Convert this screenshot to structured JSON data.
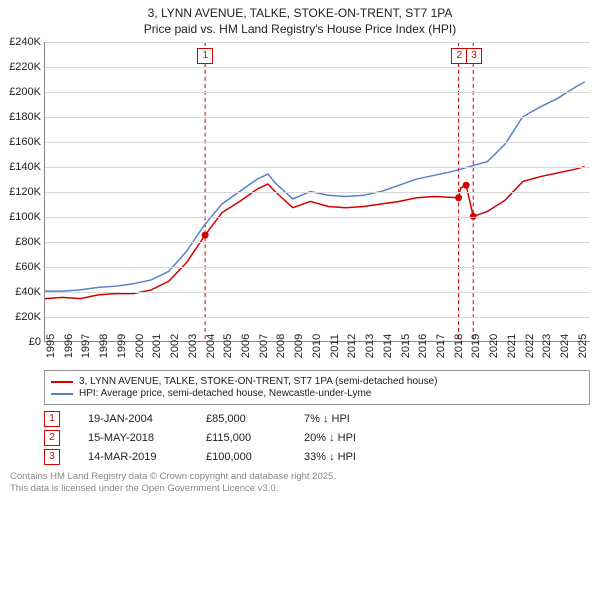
{
  "title": "3, LYNN AVENUE, TALKE, STOKE-ON-TRENT, ST7 1PA",
  "subtitle": "Price paid vs. HM Land Registry's House Price Index (HPI)",
  "chart": {
    "type": "line",
    "background_color": "#ffffff",
    "grid_color": "#d8d8d8",
    "axis_color": "#888888",
    "x_start": 1995,
    "x_end": 2025.8,
    "x_ticks": [
      1995,
      1996,
      1997,
      1998,
      1999,
      2000,
      2001,
      2002,
      2003,
      2004,
      2005,
      2006,
      2007,
      2008,
      2009,
      2010,
      2011,
      2012,
      2013,
      2014,
      2015,
      2016,
      2017,
      2018,
      2019,
      2020,
      2021,
      2022,
      2023,
      2024,
      2025
    ],
    "y_min": 0,
    "y_max": 240000,
    "y_tick_step": 20000,
    "y_tick_labels": [
      "£0",
      "£20K",
      "£40K",
      "£60K",
      "£80K",
      "£100K",
      "£120K",
      "£140K",
      "£160K",
      "£180K",
      "£200K",
      "£220K",
      "£240K"
    ],
    "series": [
      {
        "name": "property",
        "label": "3, LYNN AVENUE, TALKE, STOKE-ON-TRENT, ST7 1PA (semi-detached house)",
        "color": "#d40000",
        "line_width": 1.8,
        "points": [
          [
            1995,
            34000
          ],
          [
            1996,
            35000
          ],
          [
            1997,
            34000
          ],
          [
            1998,
            37000
          ],
          [
            1999,
            38000
          ],
          [
            2000,
            38000
          ],
          [
            2001,
            41000
          ],
          [
            2002,
            48000
          ],
          [
            2003,
            63000
          ],
          [
            2004.05,
            85000
          ],
          [
            2005,
            103000
          ],
          [
            2006,
            112000
          ],
          [
            2007,
            122000
          ],
          [
            2007.6,
            126000
          ],
          [
            2008,
            120000
          ],
          [
            2009,
            107000
          ],
          [
            2010,
            112000
          ],
          [
            2011,
            108000
          ],
          [
            2012,
            107000
          ],
          [
            2013,
            108000
          ],
          [
            2014,
            110000
          ],
          [
            2015,
            112000
          ],
          [
            2016,
            115000
          ],
          [
            2017,
            116000
          ],
          [
            2018.37,
            115000
          ],
          [
            2018.5,
            123000
          ],
          [
            2018.8,
            125000
          ],
          [
            2019.2,
            100000
          ],
          [
            2020,
            104000
          ],
          [
            2021,
            113000
          ],
          [
            2022,
            128000
          ],
          [
            2023,
            132000
          ],
          [
            2024,
            135000
          ],
          [
            2025,
            138000
          ],
          [
            2025.5,
            140000
          ]
        ]
      },
      {
        "name": "hpi",
        "label": "HPI: Average price, semi-detached house, Newcastle-under-Lyme",
        "color": "#5b7fc7",
        "line_width": 1.5,
        "points": [
          [
            1995,
            40000
          ],
          [
            1996,
            40000
          ],
          [
            1997,
            41000
          ],
          [
            1998,
            43000
          ],
          [
            1999,
            44000
          ],
          [
            2000,
            46000
          ],
          [
            2001,
            49000
          ],
          [
            2002,
            56000
          ],
          [
            2003,
            72000
          ],
          [
            2004,
            93000
          ],
          [
            2005,
            110000
          ],
          [
            2006,
            120000
          ],
          [
            2007,
            130000
          ],
          [
            2007.6,
            134000
          ],
          [
            2008,
            127000
          ],
          [
            2009,
            114000
          ],
          [
            2010,
            120000
          ],
          [
            2011,
            117000
          ],
          [
            2012,
            116000
          ],
          [
            2013,
            117000
          ],
          [
            2014,
            120000
          ],
          [
            2015,
            125000
          ],
          [
            2016,
            130000
          ],
          [
            2017,
            133000
          ],
          [
            2018,
            136000
          ],
          [
            2019,
            140000
          ],
          [
            2020,
            144000
          ],
          [
            2021,
            158000
          ],
          [
            2022,
            180000
          ],
          [
            2023,
            188000
          ],
          [
            2024,
            195000
          ],
          [
            2025,
            204000
          ],
          [
            2025.5,
            208000
          ]
        ]
      }
    ],
    "markers": [
      {
        "x": 2004.05,
        "y": 85000,
        "color": "#d40000"
      },
      {
        "x": 2018.37,
        "y": 115000,
        "color": "#d40000"
      },
      {
        "x": 2018.8,
        "y": 125000,
        "color": "#d40000"
      },
      {
        "x": 2019.2,
        "y": 100000,
        "color": "#d40000"
      }
    ],
    "events": [
      {
        "n": "1",
        "x": 2004.05,
        "color": "#d40000"
      },
      {
        "n": "2",
        "x": 2018.37,
        "color": "#d40000"
      },
      {
        "n": "3",
        "x": 2019.2,
        "color": "#d40000"
      }
    ]
  },
  "legend": {
    "border_color": "#999999",
    "items": [
      {
        "color": "#d40000",
        "label": "3, LYNN AVENUE, TALKE, STOKE-ON-TRENT, ST7 1PA (semi-detached house)"
      },
      {
        "color": "#5b7fc7",
        "label": "HPI: Average price, semi-detached house, Newcastle-under-Lyme"
      }
    ]
  },
  "events_table": [
    {
      "n": "1",
      "color": "#d40000",
      "date": "19-JAN-2004",
      "price": "£85,000",
      "pct": "7% ↓ HPI"
    },
    {
      "n": "2",
      "color": "#d40000",
      "date": "15-MAY-2018",
      "price": "£115,000",
      "pct": "20% ↓ HPI"
    },
    {
      "n": "3",
      "color": "#d40000",
      "date": "14-MAR-2019",
      "price": "£100,000",
      "pct": "33% ↓ HPI"
    }
  ],
  "footer": {
    "line1": "Contains HM Land Registry data © Crown copyright and database right 2025.",
    "line2": "This data is licensed under the Open Government Licence v3.0."
  }
}
